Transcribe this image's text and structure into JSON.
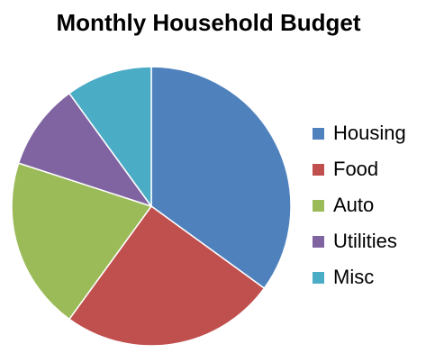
{
  "chart_data": {
    "type": "pie",
    "title": "Monthly Household Budget",
    "categories": [
      "Housing",
      "Food",
      "Auto",
      "Utilities",
      "Misc"
    ],
    "values": [
      35,
      25,
      20,
      10,
      10
    ],
    "colors": [
      "#4F81BD",
      "#C0504D",
      "#9BBB59",
      "#8064A2",
      "#4BACC6"
    ],
    "legend_position": "right",
    "start_angle": "12 o'clock",
    "direction": "clockwise"
  }
}
